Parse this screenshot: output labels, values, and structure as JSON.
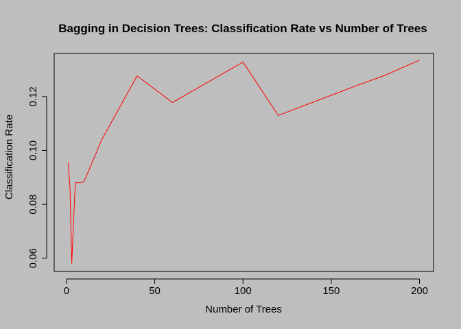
{
  "chart_data": {
    "type": "line",
    "title": "Bagging in Decision Trees: Classification Rate vs Number of Trees",
    "xlabel": "Number of Trees",
    "ylabel": "Classification Rate",
    "xlim": [
      -6.96,
      207.96
    ],
    "ylim": [
      0.0551,
      0.136
    ],
    "xticks": [
      0,
      50,
      100,
      150,
      200
    ],
    "xtick_labels": [
      "0",
      "50",
      "100",
      "150",
      "200"
    ],
    "yticks": [
      0.06,
      0.08,
      0.1,
      0.12
    ],
    "ytick_labels": [
      "0.06",
      "0.08",
      "0.10",
      "0.12"
    ],
    "grid": false,
    "legend": "none",
    "series": [
      {
        "color": "#ff0000",
        "x": [
          1,
          2,
          3,
          4,
          5,
          6,
          8,
          10,
          20,
          40,
          60,
          80,
          100,
          120,
          140,
          160,
          180,
          200
        ],
        "y": [
          0.0955,
          0.0858,
          0.0581,
          0.0735,
          0.088,
          0.088,
          0.088,
          0.0885,
          0.104,
          0.1277,
          0.1178,
          0.1253,
          0.1328,
          0.113,
          0.118,
          0.123,
          0.1278,
          0.1335
        ]
      }
    ]
  }
}
